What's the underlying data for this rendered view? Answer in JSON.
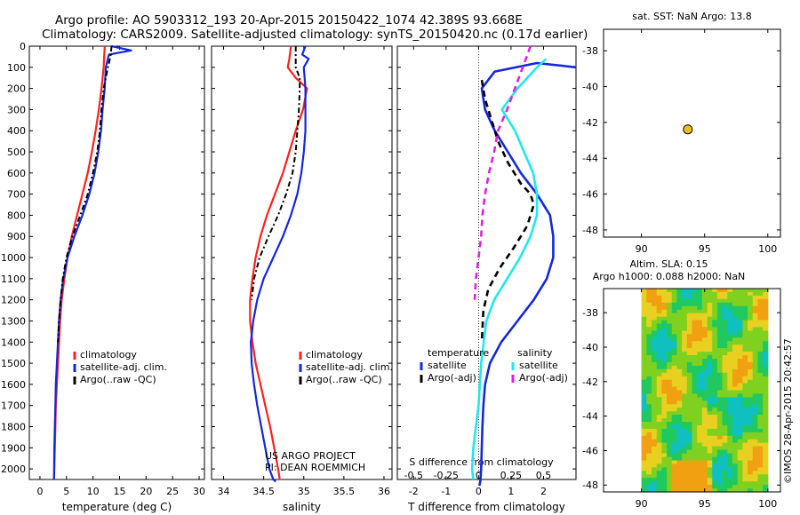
{
  "header": {
    "line1": "Argo profile: AO 5903312_193 20-Apr-2015 20150422_1074 42.389S 93.668E",
    "line2": "Climatology: CARS2009. Satellite-adjusted climatology: synTS_20150420.nc (0.17d earlier)"
  },
  "colors": {
    "climatology": "#ff2020",
    "satellite": "#1428d8",
    "argo": "#000000",
    "s_satellite": "#20e8ec",
    "s_argo": "#e020e0",
    "float_marker": "#f0c020"
  },
  "depth_ticks": [
    "0",
    "100",
    "200",
    "300",
    "400",
    "500",
    "600",
    "700",
    "800",
    "900",
    "1000",
    "1100",
    "1200",
    "1300",
    "1400",
    "1500",
    "1600",
    "1700",
    "1800",
    "1900",
    "2000"
  ],
  "chart_data": [
    {
      "type": "line",
      "xlabel": "temperature (deg C)",
      "xticks": [
        "0",
        "5",
        "10",
        "15",
        "20",
        "25",
        "30"
      ],
      "xlim": [
        -2,
        31
      ],
      "ylim": [
        2050,
        0
      ],
      "legend": [
        "climatology",
        "satellite-adj. clim.",
        "Argo(..raw -QC)"
      ],
      "legend_position": "bottom-right",
      "series": [
        {
          "name": "climatology",
          "style": "solid",
          "color": "climatology",
          "x": [
            12.2,
            12.0,
            11.6,
            11.1,
            10.5,
            9.8,
            9.0,
            8.0,
            7.0,
            6.0,
            5.2,
            4.6,
            4.1,
            3.8,
            3.6,
            3.4,
            3.2,
            3.0,
            2.9,
            2.8,
            2.7,
            2.65
          ],
          "y": [
            0,
            100,
            200,
            300,
            400,
            500,
            600,
            700,
            800,
            900,
            1000,
            1100,
            1200,
            1300,
            1400,
            1500,
            1600,
            1700,
            1800,
            1900,
            2000,
            2050
          ]
        },
        {
          "name": "satellite-adj. clim.",
          "style": "solid",
          "color": "satellite",
          "x": [
            13.5,
            17.2,
            13.0,
            12.4,
            12.2,
            11.8,
            11.5,
            11.0,
            10.3,
            9.3,
            8.0,
            6.5,
            5.2,
            4.4,
            3.9,
            3.6,
            3.4,
            3.2,
            3.0,
            2.9,
            2.8,
            2.7,
            2.65
          ],
          "y": [
            0,
            20,
            40,
            100,
            200,
            300,
            400,
            500,
            600,
            700,
            800,
            900,
            1000,
            1100,
            1200,
            1300,
            1400,
            1500,
            1600,
            1700,
            1800,
            1900,
            2050
          ]
        },
        {
          "name": "Argo(..raw -QC)",
          "style": "dashdot",
          "color": "argo",
          "x": [
            13.5,
            13.3,
            12.8,
            12.0,
            11.6,
            11.3,
            10.8,
            10.0,
            9.0,
            7.6,
            6.1,
            5.0,
            4.3,
            3.9,
            3.6,
            3.4
          ],
          "y": [
            0,
            50,
            100,
            200,
            300,
            400,
            500,
            600,
            700,
            800,
            900,
            1000,
            1100,
            1200,
            1300,
            1400
          ]
        }
      ]
    },
    {
      "type": "line",
      "xlabel": "salinity",
      "xticks": [
        "34",
        "34.5",
        "35",
        "35.5",
        "36"
      ],
      "xlim": [
        33.85,
        36.1
      ],
      "ylim": [
        2050,
        0
      ],
      "legend": [
        "climatology",
        "satellite-adj. clim.",
        "Argo(..raw -QC)"
      ],
      "legend_position": "bottom-right",
      "annotations": [
        "US ARGO PROJECT",
        "PI: DEAN ROEMMICH"
      ],
      "series": [
        {
          "name": "climatology",
          "style": "solid",
          "color": "climatology",
          "x": [
            34.84,
            34.82,
            34.8,
            34.9,
            35.04,
            34.99,
            34.9,
            34.82,
            34.74,
            34.64,
            34.54,
            34.46,
            34.4,
            34.36,
            34.33,
            34.33,
            34.36,
            34.4,
            34.46,
            34.52,
            34.58,
            34.63,
            34.68,
            34.7
          ],
          "y": [
            0,
            60,
            100,
            150,
            200,
            300,
            400,
            500,
            600,
            700,
            800,
            900,
            1000,
            1100,
            1200,
            1300,
            1400,
            1500,
            1600,
            1700,
            1800,
            1900,
            2000,
            2050
          ]
        },
        {
          "name": "satellite-adj. clim.",
          "style": "solid",
          "color": "satellite",
          "x": [
            35.02,
            34.98,
            35.06,
            35.0,
            35.02,
            35.02,
            35.02,
            35.0,
            34.97,
            34.92,
            34.84,
            34.74,
            34.62,
            34.5,
            34.42,
            34.37,
            34.34,
            34.35,
            34.38,
            34.42,
            34.47,
            34.52,
            34.57,
            34.62,
            34.65
          ],
          "y": [
            0,
            40,
            60,
            100,
            200,
            300,
            400,
            500,
            600,
            700,
            800,
            900,
            1000,
            1100,
            1200,
            1300,
            1400,
            1500,
            1600,
            1700,
            1800,
            1900,
            2000,
            2050,
            2060
          ]
        },
        {
          "name": "Argo(..raw -QC)",
          "style": "dashdot",
          "color": "argo",
          "x": [
            34.9,
            34.9,
            34.95,
            34.95,
            34.94,
            34.92,
            34.9,
            34.86,
            34.78,
            34.68,
            34.56,
            34.45,
            34.38,
            34.35
          ],
          "y": [
            0,
            100,
            150,
            200,
            300,
            400,
            500,
            600,
            700,
            800,
            900,
            1000,
            1100,
            1200
          ]
        }
      ]
    },
    {
      "type": "line",
      "xlabel": "T difference from climatology",
      "xlabel_top": "S difference from climatology",
      "xticks": [
        "-2",
        "-1",
        "0",
        "1",
        "2"
      ],
      "xticks_top": [
        "-0.5",
        "-0.25",
        "0",
        "0.25",
        "0.5"
      ],
      "xlim": [
        -2.5,
        3.0
      ],
      "ylim": [
        2050,
        0
      ],
      "legend_temperature": "temperature",
      "legend_salinity": "salinity",
      "legend": [
        "satellite",
        "Argo(-adj)",
        "satellite",
        "Argo(-adj)"
      ],
      "legend_position": "bottom-right",
      "series": [
        {
          "name": "satellite",
          "group": "temperature",
          "style": "solid",
          "color": "satellite",
          "x": [
            3.0,
            1.8,
            0.5,
            0.1,
            0.2,
            0.5,
            0.9,
            1.3,
            1.8,
            2.2,
            2.3,
            2.3,
            2.1,
            1.7,
            1.2,
            0.7,
            0.35,
            0.2,
            0.15,
            0.12,
            0.1,
            0.08,
            0.06,
            0.05,
            0.04,
            0.03,
            0.02,
            0.02
          ],
          "y": [
            100,
            80,
            120,
            200,
            300,
            400,
            500,
            600,
            700,
            800,
            900,
            1000,
            1100,
            1200,
            1300,
            1400,
            1500,
            1600,
            1700,
            1800,
            1900,
            2000,
            2050,
            2060,
            2070,
            2075,
            2080,
            2080
          ]
        },
        {
          "name": "Argo(-adj)",
          "group": "temperature",
          "style": "dashed",
          "color": "argo",
          "x": [
            0.1,
            0.2,
            0.4,
            0.6,
            0.9,
            1.3,
            1.6,
            1.7,
            1.5,
            1.1,
            0.65,
            0.3,
            0.15,
            0.1
          ],
          "y": [
            160,
            250,
            350,
            450,
            550,
            650,
            700,
            750,
            850,
            950,
            1050,
            1150,
            1250,
            1400
          ]
        },
        {
          "name": "satellite",
          "group": "salinity",
          "style": "solid",
          "color": "s_satellite",
          "x": [
            0.52,
            0.45,
            0.3,
            0.18,
            0.28,
            0.35,
            0.42,
            0.45,
            0.45,
            0.4,
            0.32,
            0.22,
            0.12,
            0.06,
            0.04,
            0.02,
            0.01,
            0.0,
            -0.02,
            -0.04,
            -0.05,
            -0.04
          ],
          "y": [
            60,
            100,
            200,
            300,
            400,
            500,
            600,
            700,
            800,
            900,
            1000,
            1100,
            1200,
            1300,
            1400,
            1500,
            1600,
            1700,
            1800,
            1900,
            2000,
            2050
          ]
        },
        {
          "name": "Argo(-adj)",
          "group": "salinity",
          "style": "dashed",
          "color": "s_argo",
          "x": [
            0.4,
            0.28,
            0.22,
            0.15,
            0.12,
            0.08,
            0.05,
            0.03,
            0.02,
            0.0,
            -0.02,
            -0.03
          ],
          "y": [
            0,
            200,
            300,
            400,
            500,
            600,
            700,
            800,
            900,
            1000,
            1100,
            1200
          ]
        }
      ]
    },
    {
      "type": "scatter",
      "title": "sat. SST: NaN Argo: 13.8",
      "xticks": [
        "90",
        "95",
        "100"
      ],
      "yticks": [
        "-38",
        "-40",
        "-42",
        "-44",
        "-46",
        "-48"
      ],
      "xlim": [
        87,
        101
      ],
      "ylim": [
        -48.4,
        -36.8
      ],
      "points": [
        {
          "x": 93.668,
          "y": -42.389
        }
      ]
    },
    {
      "type": "heatmap",
      "title": "Altim. SLA: 0.15",
      "subtitle": "Argo h1000: 0.088 h2000: NaN",
      "xticks": [
        "90",
        "95",
        "100"
      ],
      "yticks": [
        "-38",
        "-40",
        "-42",
        "-44",
        "-46",
        "-48"
      ],
      "xlim": [
        87,
        101
      ],
      "ylim": [
        -48.4,
        -36.6
      ],
      "data_extent": {
        "x": [
          90,
          100
        ],
        "y": [
          -48.4,
          -36.6
        ]
      },
      "colormap": [
        "#10c0c0",
        "#20c860",
        "#80d020",
        "#e8d020",
        "#f0a010"
      ]
    }
  ],
  "watermark": "©IMOS 28-Apr-2015 20:42:57"
}
